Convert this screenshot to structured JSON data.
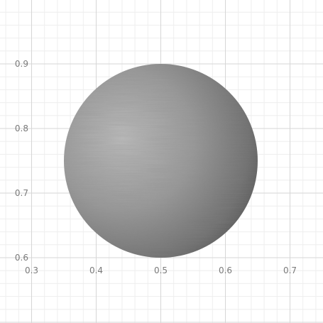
{
  "chart_data": {
    "type": "scatter",
    "title": "",
    "xlabel": "",
    "ylabel": "",
    "xlim": [
      0.3,
      0.75
    ],
    "ylim": [
      0.6,
      0.95
    ],
    "x_ticks": [
      "0.3",
      "0.4",
      "0.5",
      "0.6",
      "0.7"
    ],
    "y_ticks": [
      "0.6",
      "0.7",
      "0.8",
      "0.9"
    ],
    "grid": true,
    "legend": "none",
    "shape": {
      "kind": "shaded-sphere",
      "center": {
        "x": 0.5,
        "y": 0.75
      },
      "radius": 0.15,
      "color": "#8c8c8c"
    }
  }
}
